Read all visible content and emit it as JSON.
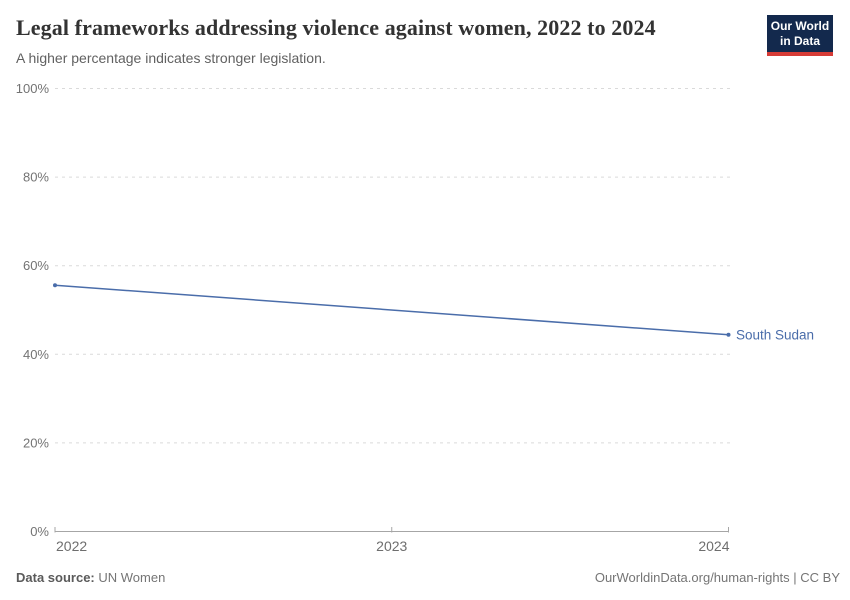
{
  "header": {
    "title": "Legal frameworks addressing violence against women, 2022 to 2024",
    "subtitle": "A higher percentage indicates stronger legislation."
  },
  "logo": {
    "line1": "Our World",
    "line2": "in Data"
  },
  "chart_data": {
    "type": "line",
    "title": "Legal frameworks addressing violence against women, 2022 to 2024",
    "x": [
      2022,
      2024
    ],
    "series": [
      {
        "name": "South Sudan",
        "values": [
          55.6,
          44.4
        ],
        "color": "#4a6daa"
      }
    ],
    "xlim": [
      2022,
      2024
    ],
    "ylim": [
      0,
      100
    ],
    "xticks": [
      2022,
      2023,
      2024
    ],
    "yticks": [
      0,
      20,
      40,
      60,
      80,
      100
    ],
    "ytick_suffix": "%",
    "grid": "horizontal-dashed",
    "legend_position": "end-of-line-label"
  },
  "footer": {
    "source_label": "Data source:",
    "source_value": "UN Women",
    "attribution": "OurWorldinData.org/human-rights | CC BY"
  },
  "colors": {
    "line": "#4a6daa",
    "grid": "#dadada",
    "axis": "#a6a6a6",
    "y_tick_label": "#737373",
    "x_tick_label": "#6e6e6e",
    "logo_bg": "#13294d",
    "logo_bar": "#d63b36"
  }
}
